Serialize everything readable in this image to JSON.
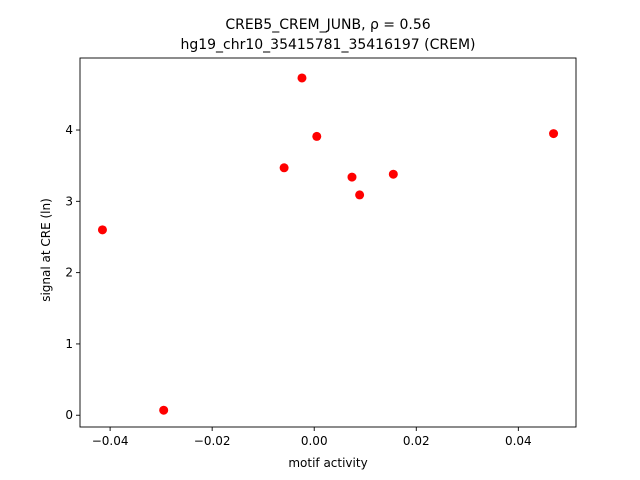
{
  "chart_data": {
    "type": "scatter",
    "title_line1": "CREB5_CREM_JUNB, ρ = 0.56",
    "title_line2": "hg19_chr10_35415781_35416197 (CREM)",
    "xlabel": "motif activity",
    "ylabel": "signal at CRE (ln)",
    "xlim": [
      -0.0459,
      0.0513
    ],
    "ylim": [
      -0.165,
      5.01
    ],
    "xticks": [
      -0.04,
      -0.02,
      0.0,
      0.02,
      0.04
    ],
    "xtick_labels": [
      "−0.04",
      "−0.02",
      "0.00",
      "0.02",
      "0.04"
    ],
    "yticks": [
      0,
      1,
      2,
      3,
      4
    ],
    "ytick_labels": [
      "0",
      "1",
      "2",
      "3",
      "4"
    ],
    "grid": false,
    "marker_color": "#ff0000",
    "points": [
      {
        "x": -0.0415,
        "y": 2.6
      },
      {
        "x": -0.0295,
        "y": 0.07
      },
      {
        "x": -0.0059,
        "y": 3.47
      },
      {
        "x": -0.0024,
        "y": 4.73
      },
      {
        "x": 0.0005,
        "y": 3.91
      },
      {
        "x": 0.0074,
        "y": 3.34
      },
      {
        "x": 0.0089,
        "y": 3.09
      },
      {
        "x": 0.0155,
        "y": 3.38
      },
      {
        "x": 0.0469,
        "y": 3.95
      }
    ]
  }
}
